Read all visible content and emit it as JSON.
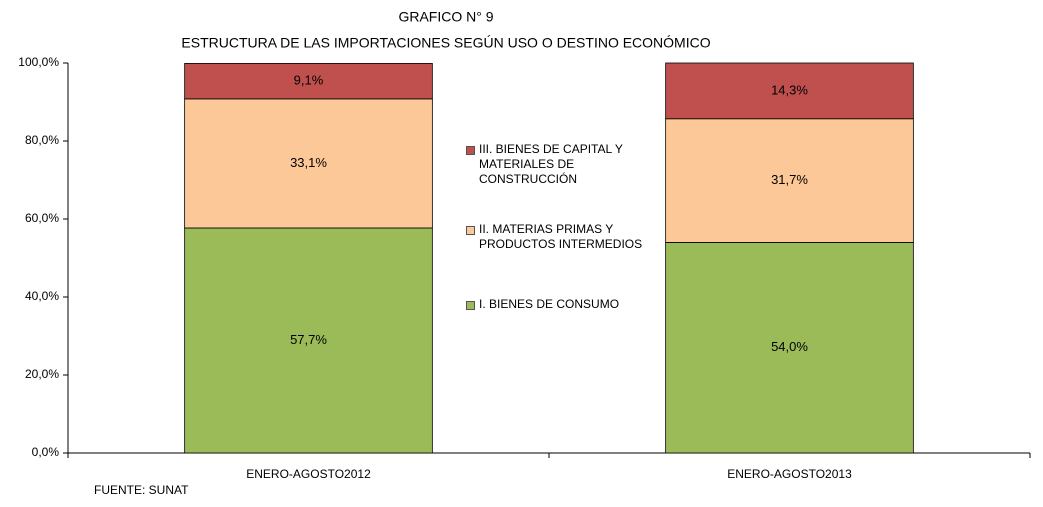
{
  "chart_data": {
    "type": "stacked_bar",
    "title": "GRAFICO N° 9",
    "subtitle": "ESTRUCTURA DE LAS IMPORTACIONES SEGÚN USO O DESTINO ECONÓMICO",
    "source": "FUENTE: SUNAT",
    "categories": [
      "ENERO-AGOSTO2012",
      "ENERO-AGOSTO2013"
    ],
    "series": [
      {
        "name": "I. BIENES DE CONSUMO",
        "color": "#9bbb59",
        "values": [
          57.7,
          54.0
        ],
        "value_labels": [
          "57,7%",
          "54,0%"
        ]
      },
      {
        "name": "II. MATERIAS PRIMAS Y PRODUCTOS INTERMEDIOS",
        "color": "#fdc898",
        "values": [
          33.1,
          31.7
        ],
        "value_labels": [
          "33,1%",
          "31,7%"
        ]
      },
      {
        "name": "III. BIENES DE CAPITAL Y MATERIALES DE CONSTRUCCIÓN",
        "color": "#c0504d",
        "values": [
          9.1,
          14.3
        ],
        "value_labels": [
          "9,1%",
          "14,3%"
        ]
      }
    ],
    "ylim": [
      0,
      100
    ],
    "yticks": [
      {
        "value": 0,
        "label": "0,0%"
      },
      {
        "value": 20,
        "label": "20,0%"
      },
      {
        "value": 40,
        "label": "40,0%"
      },
      {
        "value": 60,
        "label": "60,0%"
      },
      {
        "value": 80,
        "label": "80,0%"
      },
      {
        "value": 100,
        "label": "100,0%"
      }
    ],
    "legend": "center"
  }
}
